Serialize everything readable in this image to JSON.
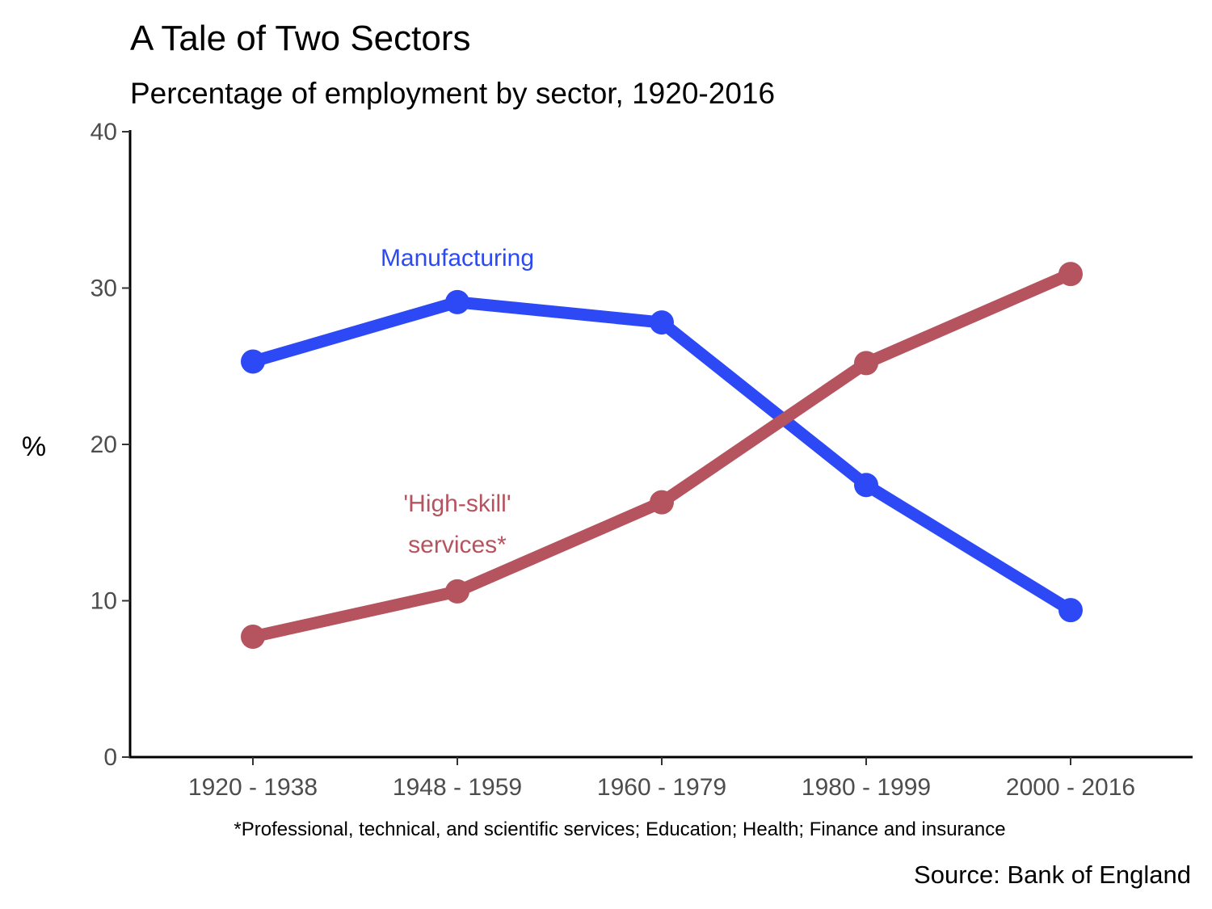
{
  "chart_data": {
    "type": "line",
    "title": "A Tale of Two Sectors",
    "subtitle": "Percentage of employment by sector, 1920-2016",
    "xlabel": "",
    "ylabel": "%",
    "categories": [
      "1920 - 1938",
      "1948 - 1959",
      "1960 - 1979",
      "1980 - 1999",
      "2000 - 2016"
    ],
    "ylim": [
      0,
      40
    ],
    "yticks": [
      "0",
      "10",
      "20",
      "30",
      "40"
    ],
    "grid": false,
    "legend": "none",
    "series": [
      {
        "name": "Manufacturing",
        "values": [
          25.3,
          29.1,
          27.8,
          17.4,
          9.4
        ],
        "color": "#2c49f5"
      },
      {
        "name": "'High-skill' services*",
        "values": [
          7.7,
          10.6,
          16.3,
          25.2,
          30.9
        ],
        "color": "#b5535e"
      }
    ],
    "annotations": {
      "manufacturing": "Manufacturing",
      "services_line1": "'High-skill'",
      "services_line2": "services*"
    },
    "footnote": "*Professional, technical, and scientific services; Education; Health; Finance and insurance",
    "source": "Source: Bank of England"
  }
}
